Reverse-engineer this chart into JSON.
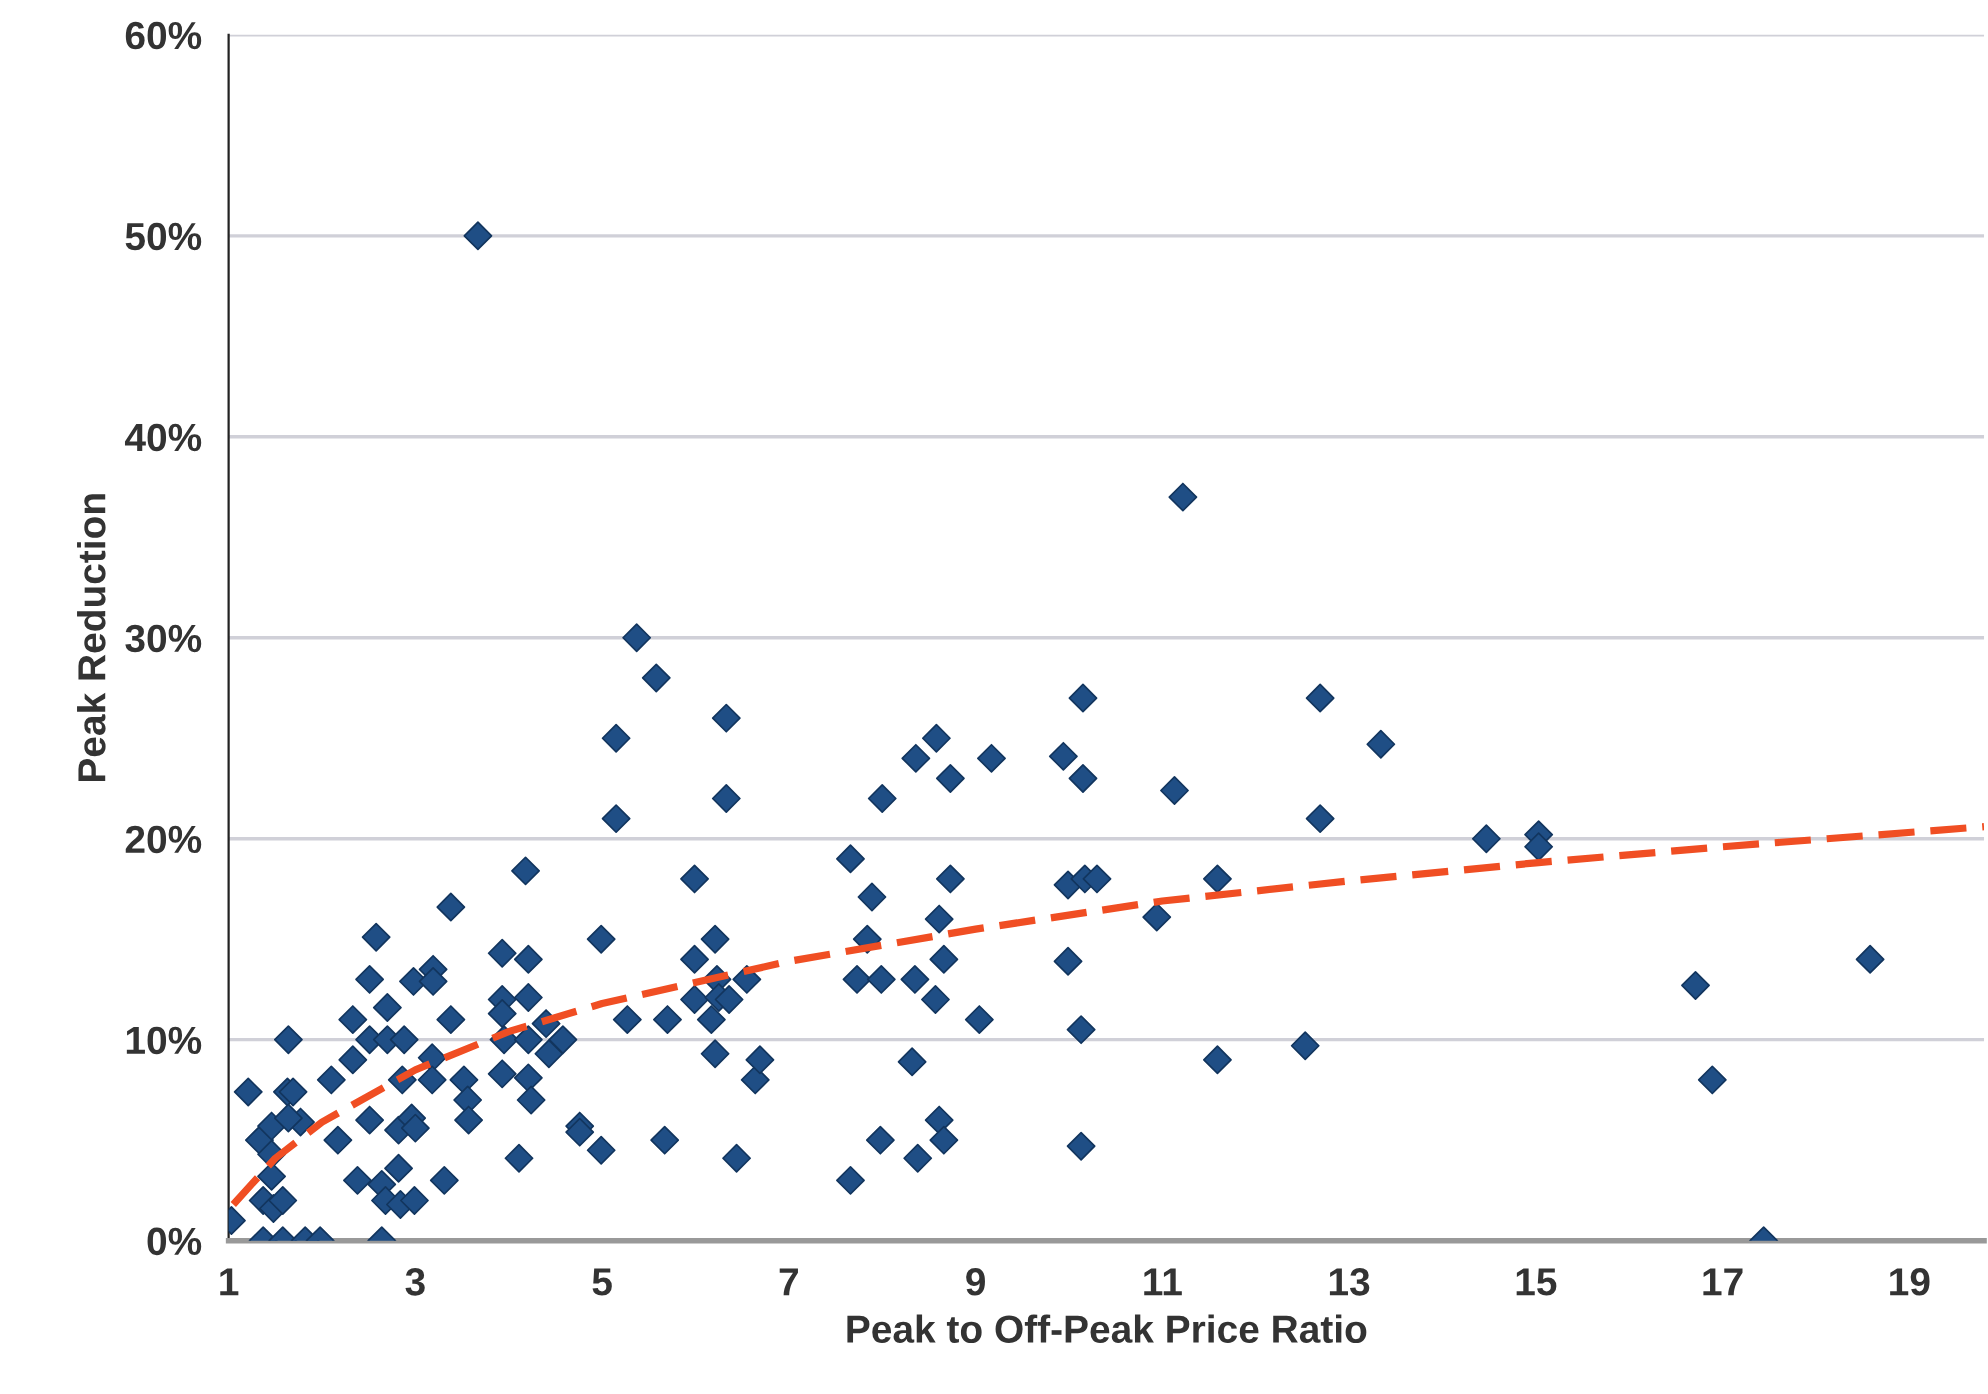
{
  "chart_data": {
    "type": "scatter",
    "xlabel": "Peak to Off-Peak Price Ratio",
    "ylabel": "Peak Reduction",
    "xlim": [
      1,
      19.8
    ],
    "xticks": [
      1,
      3,
      5,
      7,
      9,
      11,
      13,
      15,
      17,
      19
    ],
    "ylim": [
      0,
      60
    ],
    "yticks": [
      {
        "value": 0,
        "label": "0%"
      },
      {
        "value": 10,
        "label": "10%"
      },
      {
        "value": 20,
        "label": "20%"
      },
      {
        "value": 30,
        "label": "30%"
      },
      {
        "value": 40,
        "label": "40%"
      },
      {
        "value": 50,
        "label": "50%"
      },
      {
        "value": 60,
        "label": "60%"
      }
    ],
    "grid": "y",
    "marker": "diamond",
    "legend": false,
    "series": [
      {
        "color": "#1f4e85",
        "x": [
          1.03,
          1.21,
          1.33,
          1.37,
          1.46,
          1.46,
          1.46,
          1.48,
          1.58,
          1.64,
          1.63,
          1.69,
          1.77,
          1.64,
          2.1,
          2.17,
          2.33,
          2.33,
          2.38,
          2.51,
          2.51,
          2.51,
          2.58,
          2.64,
          2.68,
          2.7,
          2.7,
          2.82,
          2.82,
          2.84,
          2.86,
          2.88,
          2.96,
          2.98,
          2.99,
          3.0,
          3.18,
          3.18,
          3.19,
          3.19,
          3.31,
          3.38,
          3.38,
          3.52,
          3.56,
          3.57,
          3.67,
          3.93,
          3.93,
          3.93,
          3.95,
          3.93,
          4.11,
          4.18,
          4.21,
          4.21,
          4.21,
          4.21,
          4.24,
          4.4,
          4.43,
          4.58,
          4.76,
          4.76,
          4.99,
          4.99,
          5.15,
          5.15,
          5.27,
          5.37,
          5.58,
          5.67,
          5.7,
          5.99,
          5.99,
          5.99,
          6.17,
          6.21,
          6.21,
          6.23,
          6.25,
          6.33,
          6.33,
          6.36,
          6.44,
          6.55,
          6.64,
          6.69,
          7.66,
          7.66,
          7.73,
          7.84,
          7.89,
          7.98,
          7.99,
          8.0,
          8.32,
          8.35,
          8.36,
          8.38,
          8.57,
          8.58,
          8.61,
          8.61,
          8.66,
          8.66,
          8.73,
          8.73,
          9.04,
          9.17,
          9.94,
          9.99,
          9.99,
          10.13,
          10.13,
          10.15,
          10.15,
          10.17,
          10.3,
          10.94,
          11.13,
          11.22,
          11.59,
          11.59,
          12.53,
          12.69,
          12.69,
          13.34,
          14.47,
          15.03,
          15.03,
          16.71,
          16.89,
          17.44,
          18.58,
          1.37,
          1.58,
          1.82,
          1.98,
          2.64
        ],
        "values": [
          1.0,
          7.4,
          5.0,
          2.0,
          5.7,
          4.3,
          3.2,
          1.6,
          2.0,
          10.0,
          7.4,
          7.4,
          5.9,
          6.1,
          8.0,
          5.0,
          11.0,
          9.0,
          3.0,
          13.0,
          10.0,
          6.0,
          15.1,
          2.8,
          2.0,
          11.6,
          10.0,
          5.5,
          3.6,
          1.8,
          8.0,
          10.0,
          6.1,
          12.9,
          2.0,
          5.6,
          9.1,
          8.0,
          13.5,
          12.9,
          3.0,
          16.6,
          11.0,
          8.0,
          7.0,
          6.0,
          50.0,
          14.3,
          12.0,
          11.3,
          10.0,
          8.3,
          4.1,
          18.4,
          14.0,
          12.1,
          10.0,
          8.1,
          7.0,
          10.8,
          9.3,
          10.0,
          5.7,
          5.4,
          15.0,
          4.5,
          21.0,
          25.0,
          11.0,
          30.0,
          28.0,
          5.0,
          11.0,
          18.0,
          14.0,
          12.0,
          11.0,
          15.0,
          9.3,
          13.0,
          12.1,
          26.0,
          22.0,
          12.0,
          4.1,
          13.0,
          8.0,
          9.0,
          19.0,
          3.0,
          13.0,
          15.0,
          17.1,
          5.0,
          13.0,
          22.0,
          8.9,
          13.0,
          24.0,
          4.1,
          12.0,
          25.0,
          16.0,
          6.0,
          14.0,
          5.0,
          23.0,
          18.0,
          11.0,
          24.0,
          24.1,
          17.7,
          13.9,
          10.5,
          4.7,
          27.0,
          23.0,
          18.0,
          18.0,
          16.1,
          22.4,
          37.0,
          18.0,
          9.0,
          9.7,
          27.0,
          21.0,
          24.7,
          20.0,
          20.2,
          19.6,
          12.7,
          8.0,
          0.0,
          14.0,
          0.0,
          0.0,
          0.0,
          0.0,
          0.0
        ]
      },
      {
        "type": "line",
        "color": "#f04e23",
        "line_style": "dashed",
        "marker": "none",
        "x": [
          1.05,
          1.5,
          2,
          3,
          4,
          5,
          7,
          9,
          11,
          13,
          15,
          17,
          19.8
        ],
        "values": [
          1.8,
          4.1,
          5.9,
          8.5,
          10.4,
          11.8,
          13.9,
          15.5,
          16.9,
          17.9,
          18.8,
          19.6,
          20.6
        ]
      }
    ]
  }
}
